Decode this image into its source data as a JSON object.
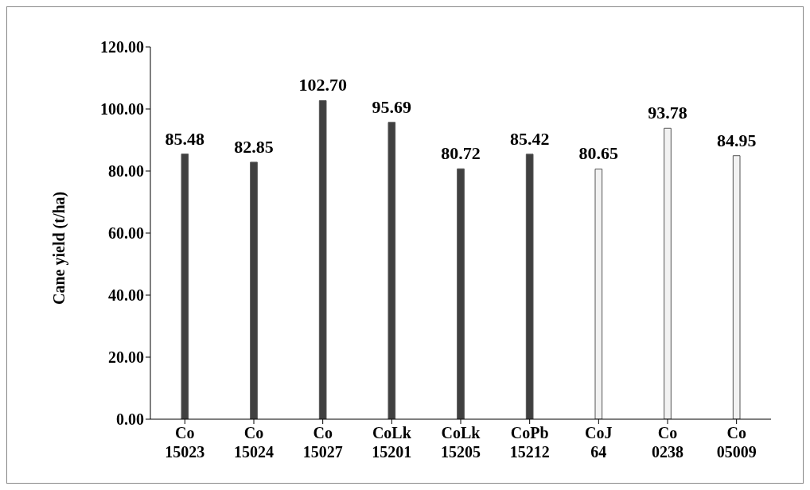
{
  "chart_data": {
    "type": "bar",
    "ylabel": "Cane yield  (t/ha)",
    "categories": [
      "Co 15023",
      "Co 15024",
      "Co 15027",
      "CoLk 15201",
      "CoLk 15205",
      "CoPb 15212",
      "CoJ 64",
      "Co 0238",
      "Co 05009"
    ],
    "values": [
      85.48,
      82.85,
      102.7,
      95.69,
      80.72,
      85.42,
      80.65,
      93.78,
      84.95
    ],
    "colors": [
      "#404040",
      "#404040",
      "#404040",
      "#404040",
      "#404040",
      "#404040",
      "#f2f2f2",
      "#f2f2f2",
      "#f2f2f2"
    ],
    "value_labels": [
      "85.48",
      "82.85",
      "102.70",
      "95.69",
      "80.72",
      "85.42",
      "80.65",
      "93.78",
      "84.95"
    ],
    "ylim": [
      0,
      120
    ],
    "yticks": [
      {
        "value": 0,
        "label": "0.00"
      },
      {
        "value": 20,
        "label": "20.00"
      },
      {
        "value": 40,
        "label": "40.00"
      },
      {
        "value": 60,
        "label": "60.00"
      },
      {
        "value": 80,
        "label": "80.00"
      },
      {
        "value": 100,
        "label": "100.00"
      },
      {
        "value": 120,
        "label": "120.00"
      }
    ],
    "grid": false,
    "legend": false
  }
}
